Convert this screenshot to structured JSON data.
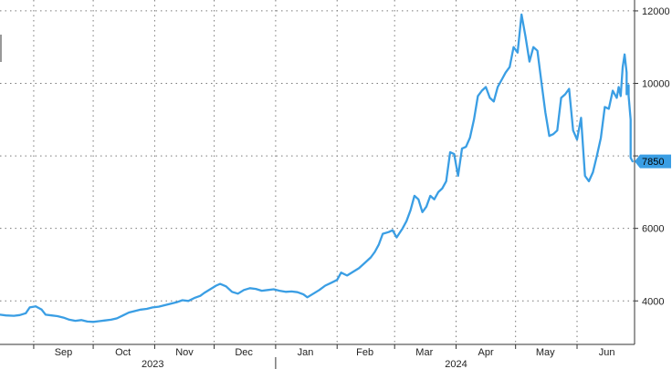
{
  "chart_data": {
    "type": "line",
    "title": "",
    "xlabel": "",
    "ylabel": "",
    "ylim": [
      2800,
      12300
    ],
    "y_ticks": [
      4000,
      6000,
      8000,
      10000,
      12000
    ],
    "y_tick_labels": [
      "4000",
      "6000",
      "",
      "10000",
      "12000"
    ],
    "y_axis_side": "right",
    "grid": true,
    "x_start": "2023-08-15",
    "x_end": "2024-06-30",
    "month_labels": [
      {
        "label": "Sep",
        "date": "2023-09-16"
      },
      {
        "label": "Oct",
        "date": "2023-10-16"
      },
      {
        "label": "Nov",
        "date": "2023-11-16"
      },
      {
        "label": "Dec",
        "date": "2023-12-16"
      },
      {
        "label": "Jan",
        "date": "2024-01-16"
      },
      {
        "label": "Feb",
        "date": "2024-02-15"
      },
      {
        "label": "Mar",
        "date": "2024-03-16"
      },
      {
        "label": "Apr",
        "date": "2024-04-16"
      },
      {
        "label": "May",
        "date": "2024-05-16"
      },
      {
        "label": "Jun",
        "date": "2024-06-16"
      }
    ],
    "month_boundaries": [
      "2023-09-01",
      "2023-10-01",
      "2023-11-01",
      "2023-12-01",
      "2024-01-01",
      "2024-02-01",
      "2024-03-01",
      "2024-04-01",
      "2024-05-01",
      "2024-06-01"
    ],
    "year_labels": [
      {
        "label": "2023",
        "date": "2023-10-31"
      },
      {
        "label": "2024",
        "date": "2024-04-01"
      }
    ],
    "year_boundary": "2024-01-01",
    "last_value_label": "7850",
    "series": [
      {
        "color": "#3a9ee4",
        "points": [
          [
            "2023-08-15",
            3620
          ],
          [
            "2023-08-18",
            3600
          ],
          [
            "2023-08-22",
            3590
          ],
          [
            "2023-08-25",
            3610
          ],
          [
            "2023-08-28",
            3660
          ],
          [
            "2023-08-30",
            3820
          ],
          [
            "2023-09-02",
            3850
          ],
          [
            "2023-09-05",
            3760
          ],
          [
            "2023-09-07",
            3620
          ],
          [
            "2023-09-10",
            3600
          ],
          [
            "2023-09-13",
            3580
          ],
          [
            "2023-09-16",
            3540
          ],
          [
            "2023-09-19",
            3480
          ],
          [
            "2023-09-22",
            3450
          ],
          [
            "2023-09-25",
            3470
          ],
          [
            "2023-09-28",
            3430
          ],
          [
            "2023-10-01",
            3420
          ],
          [
            "2023-10-04",
            3440
          ],
          [
            "2023-10-07",
            3460
          ],
          [
            "2023-10-10",
            3480
          ],
          [
            "2023-10-13",
            3520
          ],
          [
            "2023-10-16",
            3600
          ],
          [
            "2023-10-19",
            3680
          ],
          [
            "2023-10-22",
            3720
          ],
          [
            "2023-10-25",
            3760
          ],
          [
            "2023-10-28",
            3780
          ],
          [
            "2023-10-31",
            3820
          ],
          [
            "2023-11-03",
            3840
          ],
          [
            "2023-11-06",
            3880
          ],
          [
            "2023-11-09",
            3920
          ],
          [
            "2023-11-12",
            3960
          ],
          [
            "2023-11-15",
            4020
          ],
          [
            "2023-11-18",
            4000
          ],
          [
            "2023-11-21",
            4080
          ],
          [
            "2023-11-24",
            4140
          ],
          [
            "2023-11-26",
            4220
          ],
          [
            "2023-11-29",
            4320
          ],
          [
            "2023-12-02",
            4420
          ],
          [
            "2023-12-04",
            4470
          ],
          [
            "2023-12-07",
            4400
          ],
          [
            "2023-12-10",
            4250
          ],
          [
            "2023-12-13",
            4200
          ],
          [
            "2023-12-16",
            4300
          ],
          [
            "2023-12-19",
            4350
          ],
          [
            "2023-12-22",
            4330
          ],
          [
            "2023-12-25",
            4280
          ],
          [
            "2023-12-28",
            4300
          ],
          [
            "2023-12-31",
            4320
          ],
          [
            "2024-01-03",
            4280
          ],
          [
            "2024-01-06",
            4250
          ],
          [
            "2024-01-09",
            4260
          ],
          [
            "2024-01-12",
            4240
          ],
          [
            "2024-01-15",
            4180
          ],
          [
            "2024-01-17",
            4100
          ],
          [
            "2024-01-20",
            4200
          ],
          [
            "2024-01-23",
            4300
          ],
          [
            "2024-01-26",
            4420
          ],
          [
            "2024-01-29",
            4500
          ],
          [
            "2024-02-01",
            4580
          ],
          [
            "2024-02-03",
            4780
          ],
          [
            "2024-02-06",
            4700
          ],
          [
            "2024-02-09",
            4800
          ],
          [
            "2024-02-12",
            4900
          ],
          [
            "2024-02-15",
            5050
          ],
          [
            "2024-02-18",
            5200
          ],
          [
            "2024-02-20",
            5350
          ],
          [
            "2024-02-22",
            5550
          ],
          [
            "2024-02-24",
            5850
          ],
          [
            "2024-02-27",
            5900
          ],
          [
            "2024-02-29",
            5950
          ],
          [
            "2024-03-02",
            5750
          ],
          [
            "2024-03-05",
            6000
          ],
          [
            "2024-03-07",
            6200
          ],
          [
            "2024-03-09",
            6500
          ],
          [
            "2024-03-11",
            6900
          ],
          [
            "2024-03-13",
            6800
          ],
          [
            "2024-03-15",
            6450
          ],
          [
            "2024-03-17",
            6600
          ],
          [
            "2024-03-19",
            6900
          ],
          [
            "2024-03-21",
            6800
          ],
          [
            "2024-03-23",
            7000
          ],
          [
            "2024-03-25",
            7100
          ],
          [
            "2024-03-27",
            7300
          ],
          [
            "2024-03-29",
            8100
          ],
          [
            "2024-03-31",
            8050
          ],
          [
            "2024-04-02",
            7450
          ],
          [
            "2024-04-04",
            8200
          ],
          [
            "2024-04-06",
            8250
          ],
          [
            "2024-04-08",
            8500
          ],
          [
            "2024-04-10",
            9000
          ],
          [
            "2024-04-12",
            9650
          ],
          [
            "2024-04-14",
            9800
          ],
          [
            "2024-04-16",
            9900
          ],
          [
            "2024-04-18",
            9600
          ],
          [
            "2024-04-20",
            9500
          ],
          [
            "2024-04-22",
            9900
          ],
          [
            "2024-04-24",
            10100
          ],
          [
            "2024-04-26",
            10300
          ],
          [
            "2024-04-28",
            10450
          ],
          [
            "2024-04-30",
            11000
          ],
          [
            "2024-05-02",
            10850
          ],
          [
            "2024-05-04",
            11900
          ],
          [
            "2024-05-06",
            11300
          ],
          [
            "2024-05-08",
            10600
          ],
          [
            "2024-05-10",
            11000
          ],
          [
            "2024-05-12",
            10900
          ],
          [
            "2024-05-14",
            10050
          ],
          [
            "2024-05-16",
            9200
          ],
          [
            "2024-05-18",
            8550
          ],
          [
            "2024-05-20",
            8600
          ],
          [
            "2024-05-22",
            8700
          ],
          [
            "2024-05-24",
            9600
          ],
          [
            "2024-05-26",
            9700
          ],
          [
            "2024-05-28",
            9850
          ],
          [
            "2024-05-30",
            8700
          ],
          [
            "2024-06-01",
            8450
          ],
          [
            "2024-06-03",
            9050
          ],
          [
            "2024-06-05",
            7450
          ],
          [
            "2024-06-07",
            7300
          ],
          [
            "2024-06-09",
            7550
          ],
          [
            "2024-06-11",
            8000
          ],
          [
            "2024-06-13",
            8500
          ],
          [
            "2024-06-15",
            9350
          ],
          [
            "2024-06-17",
            9300
          ],
          [
            "2024-06-19",
            9800
          ],
          [
            "2024-06-21",
            9600
          ],
          [
            "2024-06-22",
            9900
          ],
          [
            "2024-06-23",
            9650
          ],
          [
            "2024-06-24",
            10450
          ],
          [
            "2024-06-25",
            10800
          ],
          [
            "2024-06-26",
            10300
          ],
          [
            "2024-06-26",
            9700
          ],
          [
            "2024-06-27",
            9950
          ],
          [
            "2024-06-27",
            9650
          ],
          [
            "2024-06-28",
            9000
          ],
          [
            "2024-06-28",
            7950
          ],
          [
            "2024-06-29",
            7850
          ]
        ]
      }
    ]
  }
}
